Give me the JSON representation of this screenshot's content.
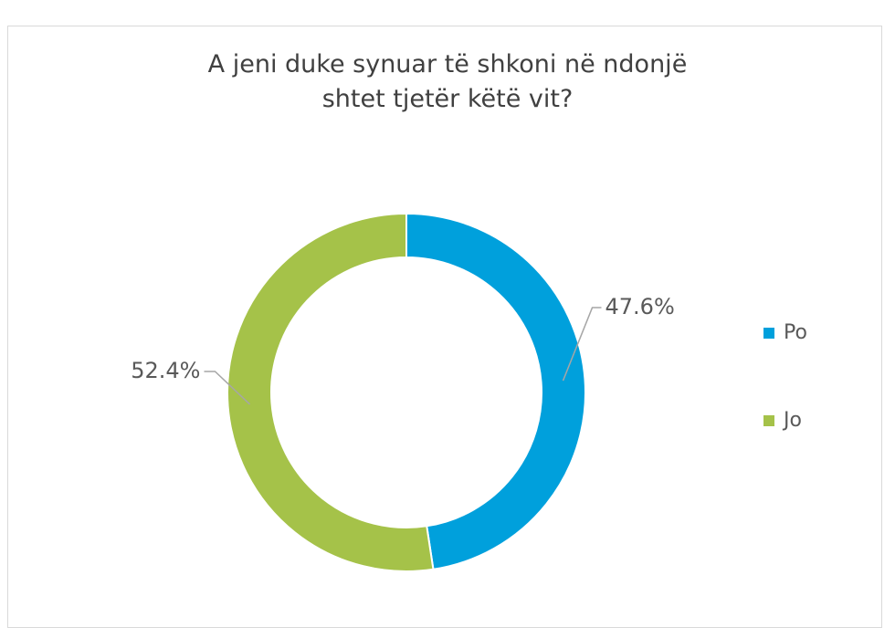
{
  "chart_data": {
    "type": "donut",
    "title": "A jeni duke synuar të shkoni në ndonjë shtet tjetër këtë vit?",
    "categories": [
      "Po",
      "Jo"
    ],
    "values": [
      47.6,
      52.4
    ],
    "value_labels": [
      "47.6%",
      "52.4%"
    ],
    "colors": [
      "#00a0dc",
      "#a5c249"
    ],
    "legend": "right"
  }
}
